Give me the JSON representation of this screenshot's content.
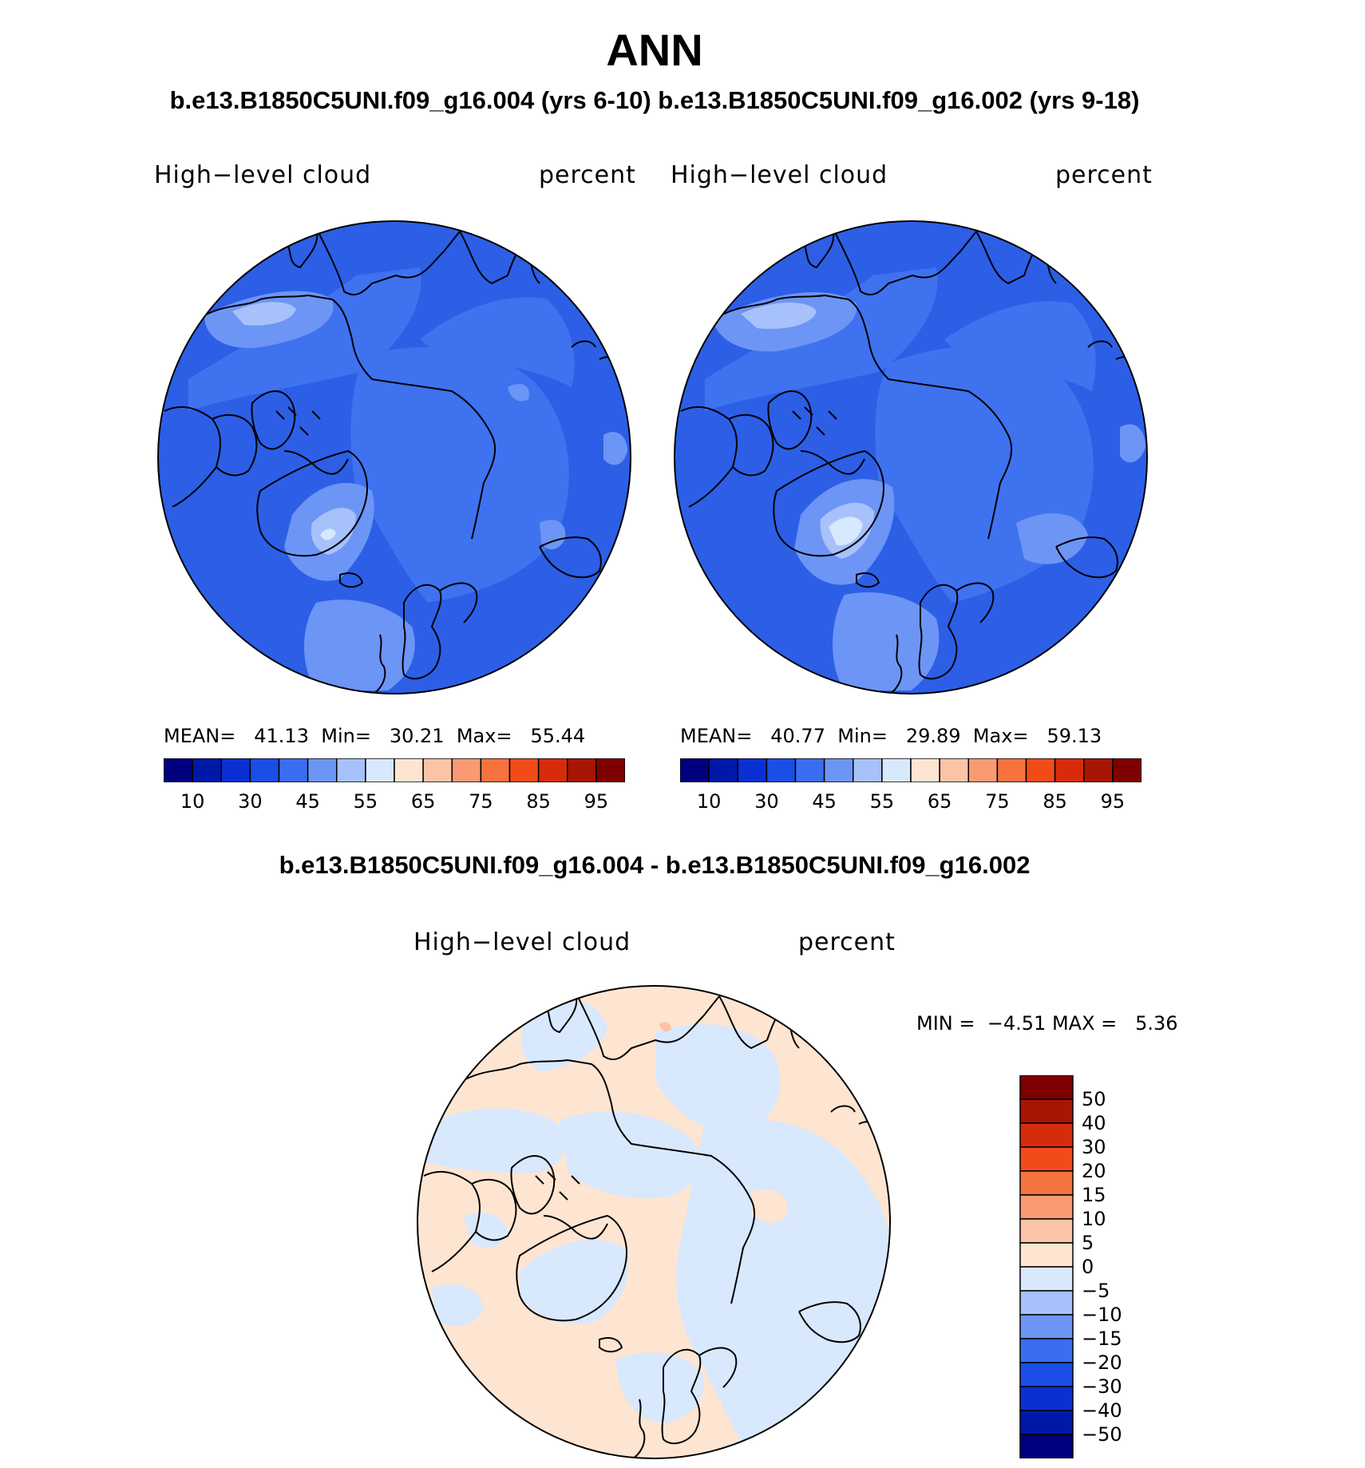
{
  "title": "ANN",
  "subtitle": "b.e13.B1850C5UNI.f09_g16.004 (yrs 6-10) b.e13.B1850C5UNI.f09_g16.002 (yrs 9-18)",
  "panels": [
    {
      "variable": "High−level cloud",
      "units": "percent",
      "stats": {
        "mean_label": "MEAN=",
        "mean": "41.13",
        "min_label": "Min=",
        "min": "30.21",
        "max_label": "Max=",
        "max": "55.44"
      }
    },
    {
      "variable": "High−level cloud",
      "units": "percent",
      "stats": {
        "mean_label": "MEAN=",
        "mean": "40.77",
        "min_label": "Min=",
        "min": "29.89",
        "max_label": "Max=",
        "max": "59.13"
      }
    }
  ],
  "colorbar": {
    "colors": [
      "#00007f",
      "#0018a8",
      "#0a30d4",
      "#1a4ee6",
      "#3a6ef0",
      "#6d95f5",
      "#a7c1fa",
      "#d8e8fd",
      "#fde5d2",
      "#fcc4a6",
      "#f99a72",
      "#f6723f",
      "#f24b1a",
      "#d62c0c",
      "#a81503",
      "#7f0000"
    ],
    "labels": [
      "10",
      "30",
      "45",
      "55",
      "65",
      "75",
      "85",
      "95"
    ]
  },
  "difference": {
    "title": "b.e13.B1850C5UNI.f09_g16.004 - b.e13.B1850C5UNI.f09_g16.002",
    "variable": "High−level cloud",
    "units": "percent",
    "min_label": "MIN =",
    "min": "−4.51",
    "max_label": "MAX =",
    "max": "5.36",
    "colorbar": {
      "colors": [
        "#7f0000",
        "#a81503",
        "#d62c0c",
        "#f24b1a",
        "#f6723f",
        "#f99a72",
        "#fcc4a6",
        "#fde5d2",
        "#d8e8fd",
        "#a7c1fa",
        "#6d95f5",
        "#3a6ef0",
        "#1a4ee6",
        "#0a30d4",
        "#0018a8",
        "#00007f"
      ],
      "labels": [
        "50",
        "40",
        "30",
        "20",
        "15",
        "10",
        "5",
        "0",
        "−5",
        "−10",
        "−15",
        "−20",
        "−30",
        "−40",
        "−50"
      ]
    }
  },
  "map_colors": {
    "deep": "#2c5fe6",
    "mid": "#3f72ef",
    "light": "#6d95f5",
    "pale": "#a7c1fa",
    "palest": "#d8e8fd",
    "diff_pos": "#fde5d2",
    "diff_neg": "#d8e8fd",
    "diff_pos2": "#fcc4a6"
  }
}
